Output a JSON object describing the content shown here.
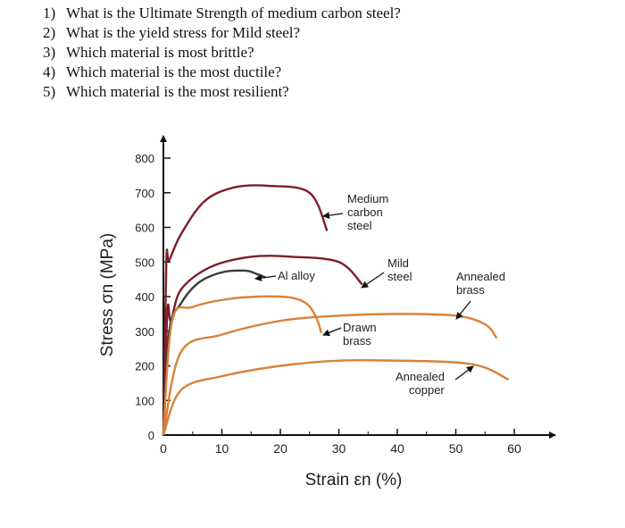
{
  "questions": [
    {
      "num": "1)",
      "text": "What is the Ultimate Strength of medium carbon steel?"
    },
    {
      "num": "2)",
      "text": "What is the yield stress for Mild steel?"
    },
    {
      "num": "3)",
      "text": "Which material is most brittle?"
    },
    {
      "num": "4)",
      "text": "Which material is the most ductile?"
    },
    {
      "num": "5)",
      "text": "Which material is the most resilient?"
    }
  ],
  "colors": {
    "steel": "#7d1e2a",
    "alloy": "#3a3a3a",
    "copper_alloy": "#d9823a",
    "axis": "#111111"
  },
  "chart_data": {
    "type": "line",
    "xlabel": "Strain εn (%)",
    "ylabel": "Stress σn (MPa)",
    "xlim": [
      0,
      65
    ],
    "ylim": [
      0,
      800
    ],
    "xticks": [
      0,
      10,
      20,
      30,
      40,
      50,
      60
    ],
    "yticks": [
      0,
      100,
      200,
      300,
      400,
      500,
      600,
      700,
      800
    ],
    "grid": false,
    "series": [
      {
        "name": "Medium carbon steel",
        "color_key": "steel",
        "x": [
          0,
          0.5,
          1,
          3,
          7,
          12,
          18,
          25,
          28
        ],
        "y": [
          0,
          500,
          505,
          580,
          675,
          715,
          720,
          700,
          590
        ]
      },
      {
        "name": "Mild steel",
        "color_key": "steel",
        "x": [
          0,
          0.7,
          1.3,
          3,
          8,
          15,
          22,
          30,
          34
        ],
        "y": [
          0,
          360,
          330,
          420,
          485,
          515,
          515,
          500,
          435
        ]
      },
      {
        "name": "Al alloy",
        "color_key": "alloy",
        "x": [
          0,
          1,
          3,
          6,
          10,
          14,
          16,
          17.5
        ],
        "y": [
          0,
          300,
          380,
          440,
          470,
          475,
          465,
          455
        ]
      },
      {
        "name": "Drawn brass",
        "color_key": "copper_alloy",
        "x": [
          0,
          1.5,
          5,
          12,
          20,
          24,
          26,
          27
        ],
        "y": [
          0,
          330,
          370,
          395,
          400,
          385,
          345,
          295
        ]
      },
      {
        "name": "Annealed brass",
        "color_key": "copper_alloy",
        "x": [
          0,
          3,
          10,
          20,
          30,
          40,
          50,
          55,
          57
        ],
        "y": [
          0,
          240,
          290,
          330,
          345,
          350,
          345,
          320,
          280
        ]
      },
      {
        "name": "Annealed copper",
        "color_key": "copper_alloy",
        "x": [
          0,
          3,
          10,
          20,
          30,
          40,
          50,
          55,
          59
        ],
        "y": [
          0,
          130,
          170,
          200,
          215,
          215,
          210,
          195,
          160
        ]
      }
    ],
    "annotations": [
      {
        "lines": [
          "Medium",
          "carbon",
          "steel"
        ],
        "points_to": "Medium carbon steel"
      },
      {
        "lines": [
          "Mild",
          "steel"
        ],
        "points_to": "Mild steel"
      },
      {
        "lines": [
          "Al alloy"
        ],
        "points_to": "Al alloy"
      },
      {
        "lines": [
          "Drawn",
          "brass"
        ],
        "points_to": "Drawn brass"
      },
      {
        "lines": [
          "Annealed",
          "brass"
        ],
        "points_to": "Annealed brass"
      },
      {
        "lines": [
          "Annealed",
          "copper"
        ],
        "points_to": "Annealed copper"
      }
    ]
  }
}
